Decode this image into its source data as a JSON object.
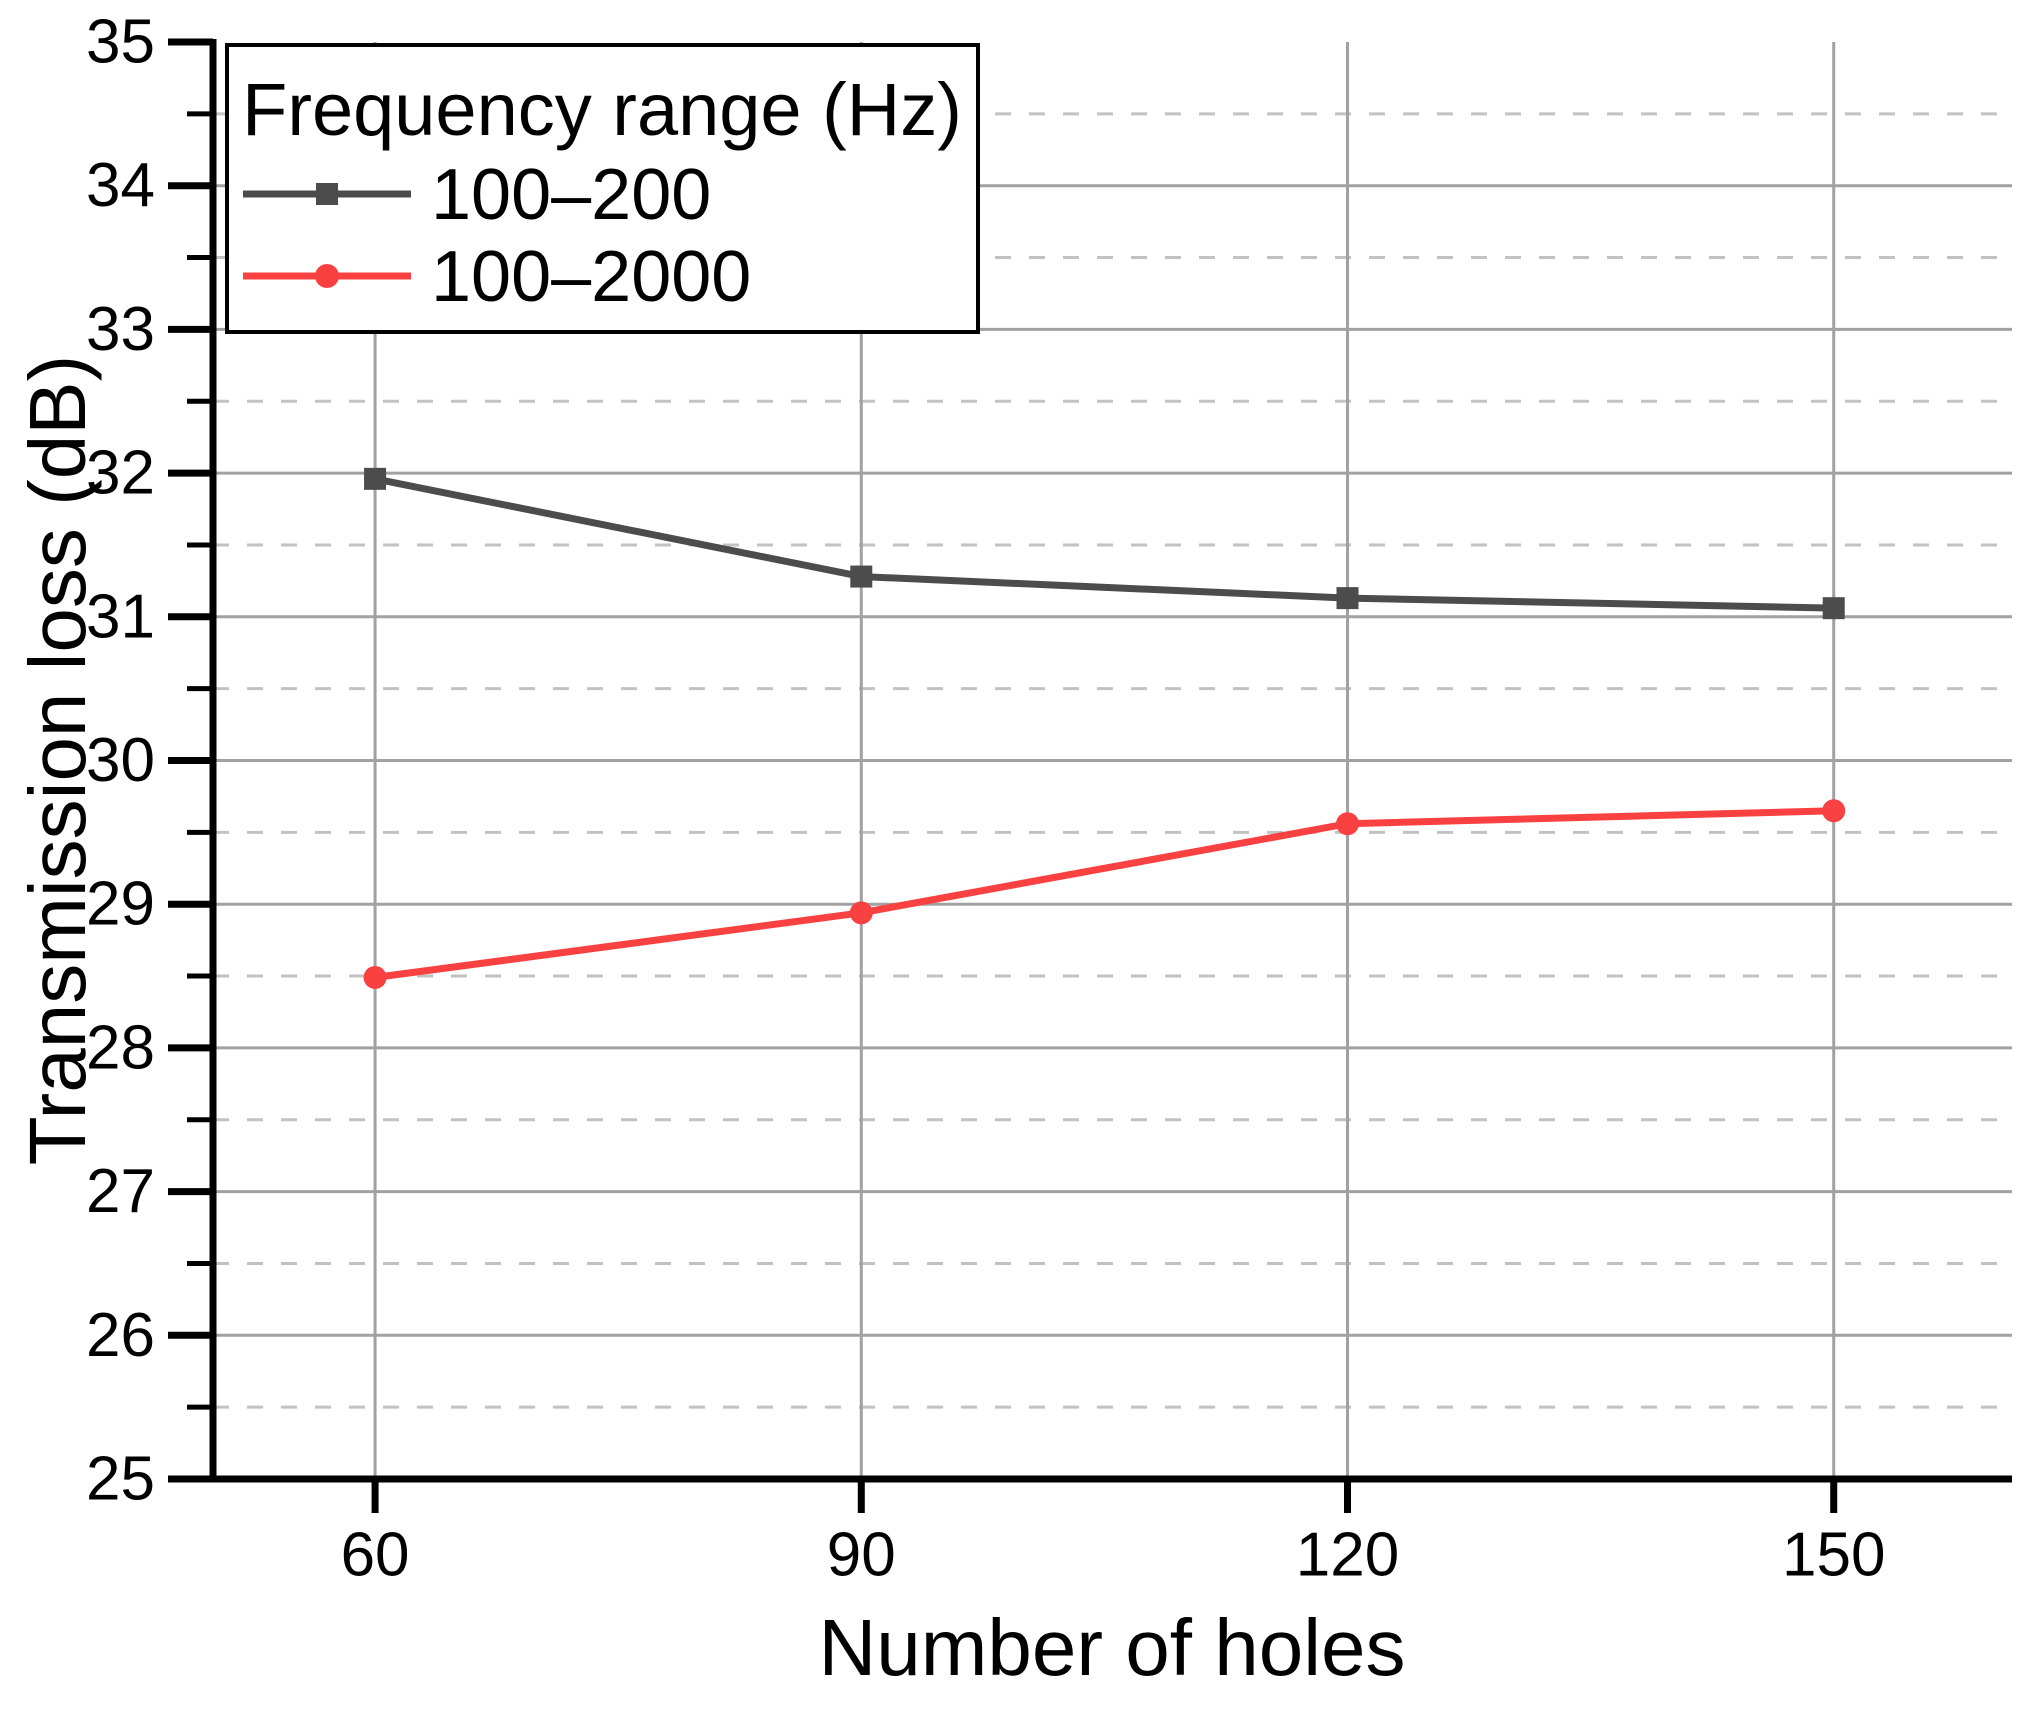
{
  "chart_data": {
    "type": "line",
    "title": "",
    "xlabel": "Number of holes",
    "ylabel": "Transmission loss (dB)",
    "x": [
      60,
      90,
      120,
      150
    ],
    "series": [
      {
        "name": "100–200",
        "color": "#4c4c4c",
        "marker": "square",
        "values": [
          31.96,
          31.28,
          31.13,
          31.06
        ]
      },
      {
        "name": "100–2000",
        "color": "#fa4141",
        "marker": "circle",
        "values": [
          28.49,
          28.94,
          29.56,
          29.65
        ]
      }
    ],
    "xlim": [
      50,
      161
    ],
    "ylim": [
      25,
      35
    ],
    "x_ticks": [
      60,
      90,
      120,
      150
    ],
    "x_tick_labels": [
      "60",
      "90",
      "120",
      "150"
    ],
    "y_major_ticks": [
      25,
      26,
      27,
      28,
      29,
      30,
      31,
      32,
      33,
      34,
      35
    ],
    "y_major_tick_labels": [
      "25",
      "26",
      "27",
      "28",
      "29",
      "30",
      "31",
      "32",
      "33",
      "34",
      "35"
    ],
    "y_minor_ticks": [
      25.5,
      26.5,
      27.5,
      28.5,
      29.5,
      30.5,
      31.5,
      32.5,
      33.5,
      34.5
    ],
    "grid": {
      "vertical_major": "solid",
      "horizontal_major": "solid",
      "horizontal_minor": "dashed",
      "gridlines_y_solid": [
        26,
        27,
        28,
        29,
        30,
        31,
        32,
        33,
        34
      ],
      "gridlines_y_dashed": [
        25.5,
        26.5,
        27.5,
        28.5,
        29.5,
        30.5,
        31.5,
        32.5,
        33.5,
        34.5
      ]
    },
    "legend": {
      "title": "Frequency range (Hz)",
      "position": "top-left",
      "entries": [
        "100–200",
        "100–2000"
      ]
    },
    "colors": {
      "axis": "#000000",
      "grid_major": "#a1a1a1",
      "grid_minor": "#c2c2c2",
      "series_1": "#4c4c4c",
      "series_2": "#fa4141",
      "background": "#ffffff"
    }
  }
}
